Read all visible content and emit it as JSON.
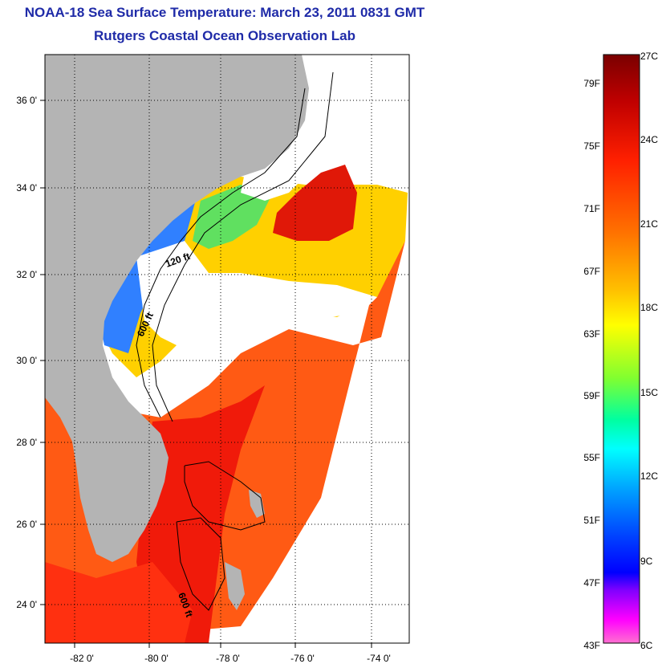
{
  "title": {
    "line1": "NOAA-18 Sea Surface Temperature:  March 23, 2011 0831 GMT",
    "line2": "Rutgers Coastal Ocean Observation Lab"
  },
  "map": {
    "lat_ticks": [
      "36 0'",
      "34 0'",
      "32 0'",
      "30 0'",
      "28 0'",
      "26 0'",
      "24 0'"
    ],
    "lon_ticks": [
      "-82 0'",
      "-80 0'",
      "-78 0'",
      "-76 0'",
      "-74 0'"
    ],
    "contour_labels": [
      "120 ft",
      "600 ft",
      "600 ft"
    ],
    "colors": {
      "land": "#b4b4b4",
      "cloud": "#ffffff",
      "grid": "#000000"
    }
  },
  "colorbar": {
    "fahrenheit": [
      "79F",
      "75F",
      "71F",
      "67F",
      "63F",
      "59F",
      "55F",
      "51F",
      "47F",
      "43F"
    ],
    "celsius": [
      "27C",
      "24C",
      "21C",
      "18C",
      "15C",
      "12C",
      "9C",
      "6C"
    ],
    "gradient": [
      "#7a0000",
      "#c00000",
      "#ff2000",
      "#ff7000",
      "#ffc000",
      "#ffff00",
      "#80ff30",
      "#00ffa0",
      "#00ffff",
      "#00a0ff",
      "#0040ff",
      "#0000ff",
      "#8000ff",
      "#ff00ff",
      "#ff70d0"
    ]
  }
}
